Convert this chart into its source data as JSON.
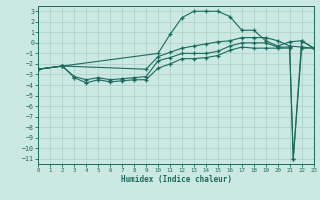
{
  "xlabel": "Humidex (Indice chaleur)",
  "xlim": [
    0,
    23
  ],
  "ylim": [
    -11.5,
    3.5
  ],
  "yticks": [
    3,
    2,
    1,
    0,
    -1,
    -2,
    -3,
    -4,
    -5,
    -6,
    -7,
    -8,
    -9,
    -10,
    -11
  ],
  "xticks": [
    0,
    1,
    2,
    3,
    4,
    5,
    6,
    7,
    8,
    9,
    10,
    11,
    12,
    13,
    14,
    15,
    16,
    17,
    18,
    19,
    20,
    21,
    22,
    23
  ],
  "bg_color": "#cce8e2",
  "grid_color": "#aacfc8",
  "line_color": "#1a6b5e",
  "line1_x": [
    0,
    2,
    10,
    11,
    12,
    13,
    14,
    15,
    16,
    17,
    18,
    19,
    20,
    21,
    22,
    23
  ],
  "line1_y": [
    -2.5,
    -2.2,
    -1.0,
    0.8,
    2.4,
    3.0,
    3.0,
    3.0,
    2.5,
    1.2,
    1.2,
    0.2,
    -0.3,
    0.1,
    0.2,
    -0.5
  ],
  "line2_x": [
    0,
    2,
    9,
    10,
    11,
    12,
    13,
    14,
    15,
    16,
    17,
    18,
    19,
    20,
    21,
    22,
    23
  ],
  "line2_y": [
    -2.5,
    -2.2,
    -2.5,
    -1.3,
    -0.9,
    -0.5,
    -0.3,
    -0.1,
    0.1,
    0.2,
    0.5,
    0.5,
    0.5,
    0.2,
    -0.3,
    -0.4,
    -0.5
  ],
  "line3_x": [
    0,
    2,
    3,
    4,
    5,
    6,
    7,
    8,
    9,
    10,
    11,
    12,
    13,
    14,
    15,
    16,
    17,
    18,
    19,
    20,
    21,
    21.3,
    22,
    23
  ],
  "line3_y": [
    -2.5,
    -2.2,
    -3.2,
    -3.5,
    -3.3,
    -3.5,
    -3.4,
    -3.3,
    -3.2,
    -1.7,
    -1.4,
    -1.0,
    -1.0,
    -1.0,
    -0.8,
    -0.3,
    0.0,
    0.0,
    0.0,
    -0.4,
    -0.4,
    -11.0,
    -0.5,
    -0.5
  ],
  "line4_x": [
    0,
    2,
    3,
    4,
    5,
    6,
    7,
    8,
    9,
    10,
    11,
    12,
    13,
    14,
    15,
    16,
    17,
    18,
    19,
    20,
    21,
    21.3,
    22,
    23
  ],
  "line4_y": [
    -2.5,
    -2.2,
    -3.3,
    -3.8,
    -3.5,
    -3.7,
    -3.6,
    -3.5,
    -3.5,
    -2.4,
    -2.0,
    -1.5,
    -1.5,
    -1.4,
    -1.2,
    -0.7,
    -0.4,
    -0.5,
    -0.5,
    -0.5,
    -0.5,
    -11.0,
    0.2,
    -0.5
  ]
}
